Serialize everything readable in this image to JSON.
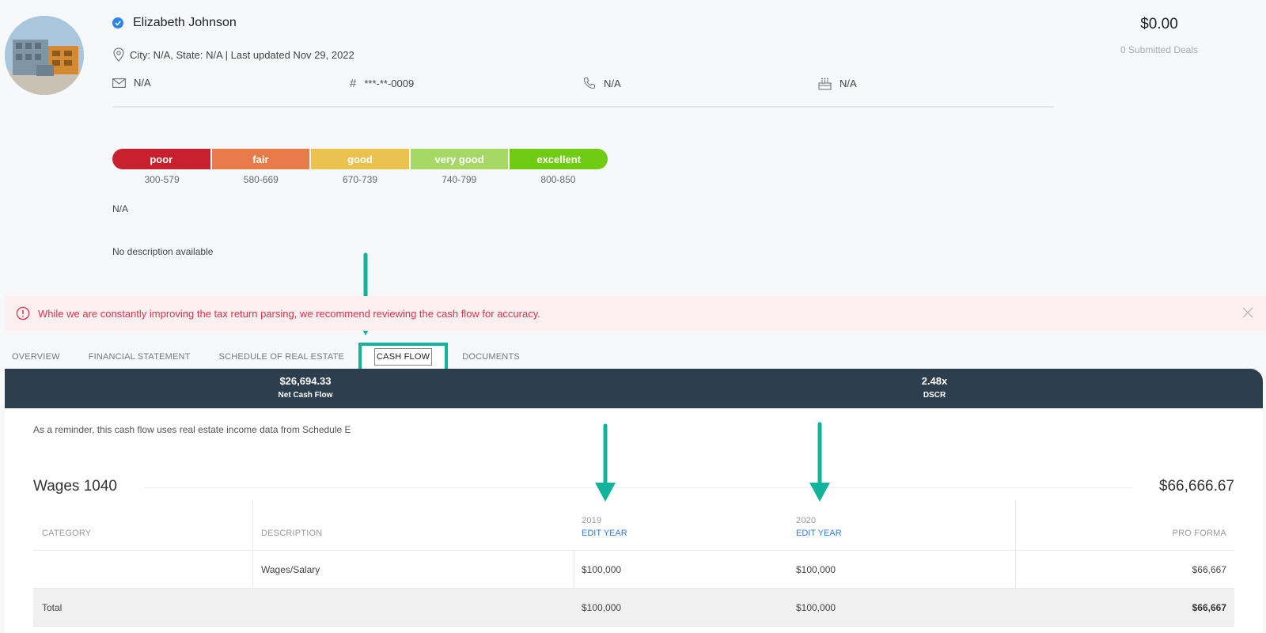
{
  "profile": {
    "name": "Elizabeth Johnson",
    "location_line": "City: N/A, State: N/A | Last updated Nov 29, 2022",
    "email": "N/A",
    "ssn": "***-**-0009",
    "phone": "N/A",
    "birthday": "N/A"
  },
  "balance": {
    "amount": "$0.00",
    "subtitle": "0 Submitted Deals"
  },
  "credit": {
    "segments": [
      {
        "label": "poor",
        "range": "300-579",
        "color": "#c8202f"
      },
      {
        "label": "fair",
        "range": "580-669",
        "color": "#e87b4a"
      },
      {
        "label": "good",
        "range": "670-739",
        "color": "#ebc24f"
      },
      {
        "label": "very good",
        "range": "740-799",
        "color": "#a5d867"
      },
      {
        "label": "excellent",
        "range": "800-850",
        "color": "#6fcc12"
      }
    ],
    "score_text": "N/A"
  },
  "description": "No description available",
  "alert": {
    "message": "While we are constantly improving the tax return parsing, we recommend reviewing the cash flow for accuracy."
  },
  "tabs": [
    "OVERVIEW",
    "FINANCIAL STATEMENT",
    "SCHEDULE OF REAL ESTATE",
    "CASH FLOW",
    "DOCUMENTS"
  ],
  "active_tab": "CASH FLOW",
  "summary": {
    "net_cash_flow_value": "$26,694.33",
    "net_cash_flow_label": "Net Cash Flow",
    "dscr_value": "2.48x",
    "dscr_label": "DSCR"
  },
  "cashflow": {
    "reminder": "As a reminder, this cash flow uses real estate income data from Schedule E",
    "section_title": "Wages 1040",
    "section_total": "$66,666.67",
    "columns": {
      "category": "CATEGORY",
      "description": "DESCRIPTION",
      "year1": "2019",
      "year2": "2020",
      "edit_year": "EDIT YEAR",
      "pro_forma": "PRO FORMA"
    },
    "rows": [
      {
        "category": "",
        "description": "Wages/Salary",
        "y1": "$100,000",
        "y2": "$100,000",
        "pro_forma": "$66,667"
      }
    ],
    "total": {
      "label": "Total",
      "y1": "$100,000",
      "y2": "$100,000",
      "pro_forma": "$66,667"
    }
  },
  "colors": {
    "accent_annotation": "#11b39a",
    "summary_band": "#2d3e4e",
    "alert_text": "#e0314b",
    "link": "#2f7be5"
  }
}
